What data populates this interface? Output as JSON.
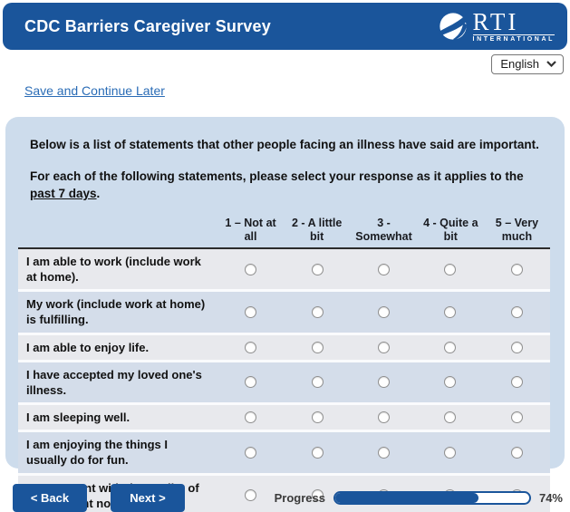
{
  "header": {
    "title": "CDC Barriers Caregiver Survey",
    "logo_main": "RTI",
    "logo_sub": "INTERNATIONAL"
  },
  "language": {
    "selected": "English"
  },
  "links": {
    "save_and_continue": "Save and Continue Later"
  },
  "instructions": {
    "line1": "Below is a list of statements that other people facing an illness have said are important.",
    "line2_prefix": "For each of the following statements, please select your response as it applies to the ",
    "line2_underlined": "past 7 days",
    "line2_suffix": "."
  },
  "survey_table": {
    "columns": [
      "1 – Not at all",
      "2 - A little bit",
      "3 - Somewhat",
      "4 - Quite a bit",
      "5 – Very much"
    ],
    "rows": [
      "I am able to work (include work at home).",
      "My work (include work at home) is fulfilling.",
      "I am able to enjoy life.",
      "I have accepted my loved one's illness.",
      "I am sleeping well.",
      "I am enjoying the things I usually do for fun.",
      "I am content with the quality of my life right now."
    ]
  },
  "footer": {
    "back_label": "< Back",
    "next_label": "Next >",
    "progress_label": "Progress",
    "progress_percent": 74,
    "progress_text": "74%"
  },
  "colors": {
    "brand_blue": "#1a559b",
    "panel_bg": "#cddcec",
    "row_odd": "#e8e9ed",
    "row_even": "#d4ddea",
    "link_blue": "#2a6cb6"
  }
}
